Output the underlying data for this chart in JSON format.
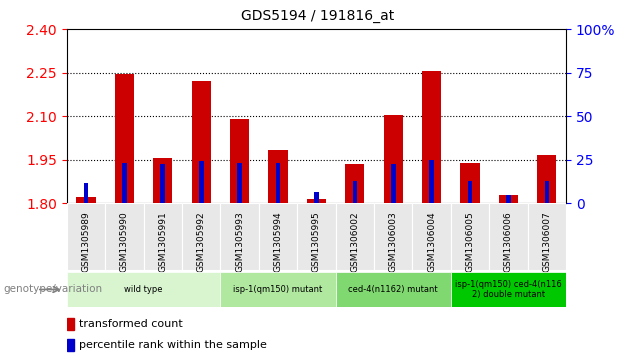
{
  "title": "GDS5194 / 191816_at",
  "samples": [
    "GSM1305989",
    "GSM1305990",
    "GSM1305991",
    "GSM1305992",
    "GSM1305993",
    "GSM1305994",
    "GSM1305995",
    "GSM1306002",
    "GSM1306003",
    "GSM1306004",
    "GSM1306005",
    "GSM1306006",
    "GSM1306007"
  ],
  "red_values": [
    1.82,
    2.245,
    1.955,
    2.22,
    2.09,
    1.985,
    1.815,
    1.935,
    2.105,
    2.255,
    1.94,
    1.83,
    1.965
  ],
  "blue_values": [
    1.87,
    1.94,
    1.935,
    1.945,
    1.94,
    1.94,
    1.84,
    1.875,
    1.935,
    1.95,
    1.875,
    1.83,
    1.875
  ],
  "ymin": 1.8,
  "ymax": 2.4,
  "yticks": [
    1.8,
    1.95,
    2.1,
    2.25,
    2.4
  ],
  "y2ticks_pct": [
    0,
    25,
    50,
    75,
    100
  ],
  "grid_lines": [
    1.95,
    2.1,
    2.25
  ],
  "groups": [
    {
      "label": "wild type",
      "start": 0,
      "end": 3,
      "color": "#d8f5d0"
    },
    {
      "label": "isp-1(qm150) mutant",
      "start": 4,
      "end": 6,
      "color": "#b0e8a0"
    },
    {
      "label": "ced-4(n1162) mutant",
      "start": 7,
      "end": 9,
      "color": "#80d870"
    },
    {
      "label": "isp-1(qm150) ced-4(n116\n2) double mutant",
      "start": 10,
      "end": 12,
      "color": "#00c800"
    }
  ],
  "xlabel_label": "genotype/variation",
  "legend_red": "transformed count",
  "legend_blue": "percentile rank within the sample",
  "bar_width": 0.5,
  "blue_bar_width": 0.12,
  "bg_color": "#e8e8e8"
}
